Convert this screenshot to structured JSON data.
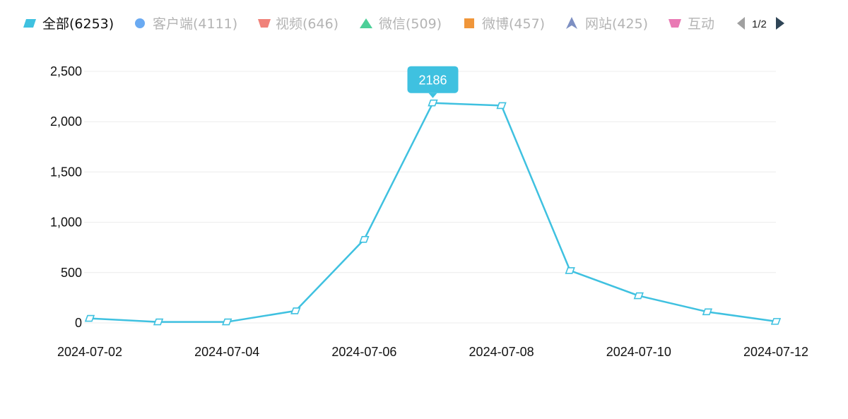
{
  "legend": {
    "items": [
      {
        "label": "全部(6253)",
        "icon": "parallelogram-icon",
        "color": "#3fc1e0",
        "active": true
      },
      {
        "label": "客户端(4111)",
        "icon": "circle-icon",
        "color": "#6aaaf2",
        "active": false
      },
      {
        "label": "视频(646)",
        "icon": "trapezoid-icon",
        "color": "#f0827a",
        "active": false
      },
      {
        "label": "微信(509)",
        "icon": "triangle-icon",
        "color": "#4ccf98",
        "active": false
      },
      {
        "label": "微博(457)",
        "icon": "square-icon",
        "color": "#f0963a",
        "active": false
      },
      {
        "label": "网站(425)",
        "icon": "arrow-icon",
        "color": "#7d8fc2",
        "active": false
      },
      {
        "label": "互动",
        "icon": "trapezoid-icon",
        "color": "#e97ab4",
        "active": false
      }
    ],
    "pager": {
      "text": "1/2",
      "prev_icon": "left-triangle-icon",
      "next_icon": "right-triangle-icon"
    }
  },
  "tooltip": {
    "text": "2186"
  },
  "chart_data": {
    "type": "line",
    "x": [
      "2024-07-02",
      "2024-07-03",
      "2024-07-04",
      "2024-07-05",
      "2024-07-06",
      "2024-07-07",
      "2024-07-08",
      "2024-07-09",
      "2024-07-10",
      "2024-07-11",
      "2024-07-12"
    ],
    "series": [
      {
        "name": "全部(6253)",
        "values": [
          45,
          10,
          10,
          120,
          830,
          2186,
          2160,
          520,
          270,
          110,
          15
        ]
      }
    ],
    "xtick_labels": [
      "2024-07-02",
      "2024-07-04",
      "2024-07-06",
      "2024-07-08",
      "2024-07-10",
      "2024-07-12"
    ],
    "ytick_labels": [
      "0",
      "500",
      "1,000",
      "1,500",
      "2,000",
      "2,500"
    ],
    "yticks": [
      0,
      500,
      1000,
      1500,
      2000,
      2500
    ],
    "ylim": [
      0,
      2500
    ],
    "grid": true,
    "line_color": "#3fc1e0",
    "title": "",
    "xlabel": "",
    "ylabel": ""
  }
}
